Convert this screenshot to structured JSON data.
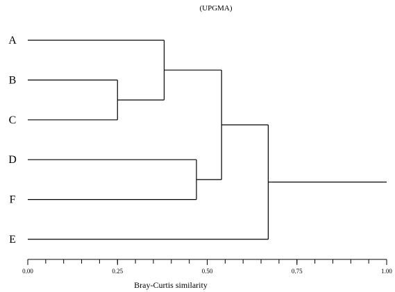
{
  "chart_data": {
    "type": "dendrogram",
    "title": "(UPGMA)",
    "xlabel": "Bray-Curtis similarity",
    "xlim": [
      0,
      1
    ],
    "x_ticks": [
      {
        "value": 0.0,
        "label": "0.00"
      },
      {
        "value": 0.25,
        "label": "0.25"
      },
      {
        "value": 0.5,
        "label": "0.50"
      },
      {
        "value": 0.75,
        "label": "0.75"
      },
      {
        "value": 1.0,
        "label": "1.00"
      }
    ],
    "minor_tick_step": 0.05,
    "leaves": [
      "A",
      "B",
      "C",
      "D",
      "F",
      "E"
    ],
    "merges": [
      {
        "id": "BC",
        "children": [
          "B",
          "C"
        ],
        "similarity": 0.25
      },
      {
        "id": "ABC",
        "children": [
          "A",
          "BC"
        ],
        "similarity": 0.38
      },
      {
        "id": "DF",
        "children": [
          "D",
          "F"
        ],
        "similarity": 0.47
      },
      {
        "id": "ABCDF",
        "children": [
          "ABC",
          "DF"
        ],
        "similarity": 0.54
      },
      {
        "id": "ABCDFE",
        "children": [
          "ABCDF",
          "E"
        ],
        "similarity": 0.67
      }
    ],
    "root_extends_to": 1.0
  }
}
